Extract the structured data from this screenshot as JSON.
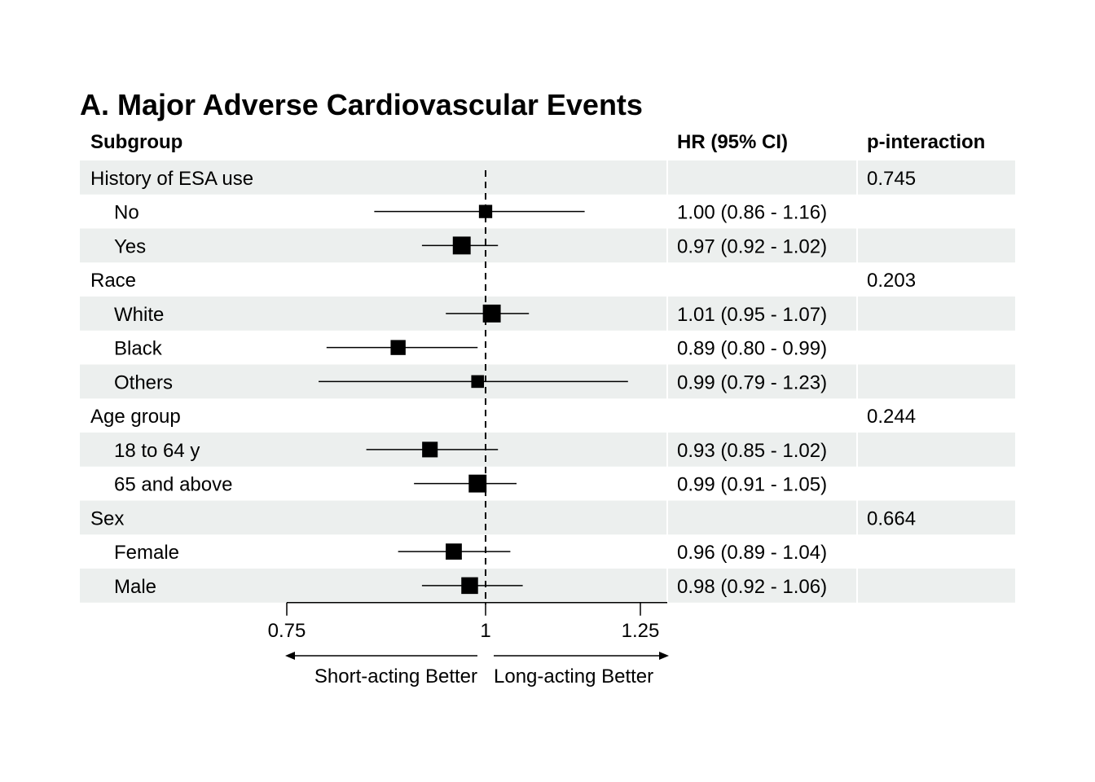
{
  "chart_data": {
    "type": "forest",
    "title": "A. Major Adverse Cardiovascular Events",
    "columns": {
      "subgroup": "Subgroup",
      "hr": "HR (95% CI)",
      "p": "p-interaction"
    },
    "rows": [
      {
        "label": "History of ESA use",
        "header": true,
        "p": "0.745"
      },
      {
        "label": "No",
        "hr": 1.0,
        "lo": 0.86,
        "hi": 1.16,
        "text": "1.00 (0.86 - 1.16)",
        "weight": 0.45
      },
      {
        "label": "Yes",
        "hr": 0.97,
        "lo": 0.92,
        "hi": 1.02,
        "text": "0.97 (0.92 - 1.02)",
        "weight": 0.85
      },
      {
        "label": "Race",
        "header": true,
        "p": "0.203"
      },
      {
        "label": "White",
        "hr": 1.01,
        "lo": 0.95,
        "hi": 1.07,
        "text": "1.01 (0.95 - 1.07)",
        "weight": 0.85
      },
      {
        "label": "Black",
        "hr": 0.89,
        "lo": 0.8,
        "hi": 0.99,
        "text": "0.89 (0.80 - 0.99)",
        "weight": 0.6
      },
      {
        "label": "Others",
        "hr": 0.99,
        "lo": 0.79,
        "hi": 1.23,
        "text": "0.99 (0.79 - 1.23)",
        "weight": 0.4
      },
      {
        "label": "Age group",
        "header": true,
        "p": "0.244"
      },
      {
        "label": "18 to 64 y",
        "hr": 0.93,
        "lo": 0.85,
        "hi": 1.02,
        "text": "0.93 (0.85 - 1.02)",
        "weight": 0.65
      },
      {
        "label": "65 and above",
        "hr": 0.99,
        "lo": 0.91,
        "hi": 1.05,
        "text": "0.99 (0.91 - 1.05)",
        "weight": 0.85
      },
      {
        "label": "Sex",
        "header": true,
        "p": "0.664"
      },
      {
        "label": "Female",
        "hr": 0.96,
        "lo": 0.89,
        "hi": 1.04,
        "text": "0.96 (0.89 - 1.04)",
        "weight": 0.7
      },
      {
        "label": "Male",
        "hr": 0.98,
        "lo": 0.92,
        "hi": 1.06,
        "text": "0.98 (0.92 - 1.06)",
        "weight": 0.75
      }
    ],
    "reference_line": 1,
    "xlim": [
      0.75,
      1.25
    ],
    "xticks": [
      {
        "value": 0.75,
        "label": "0.75"
      },
      {
        "value": 1,
        "label": "1"
      },
      {
        "value": 1.25,
        "label": "1.25"
      }
    ],
    "direction_labels": {
      "left": "Short-acting Better",
      "right": "Long-acting Better"
    },
    "colors": {
      "stripe": "#ecefee",
      "marker": "#000000",
      "line": "#000000"
    }
  }
}
